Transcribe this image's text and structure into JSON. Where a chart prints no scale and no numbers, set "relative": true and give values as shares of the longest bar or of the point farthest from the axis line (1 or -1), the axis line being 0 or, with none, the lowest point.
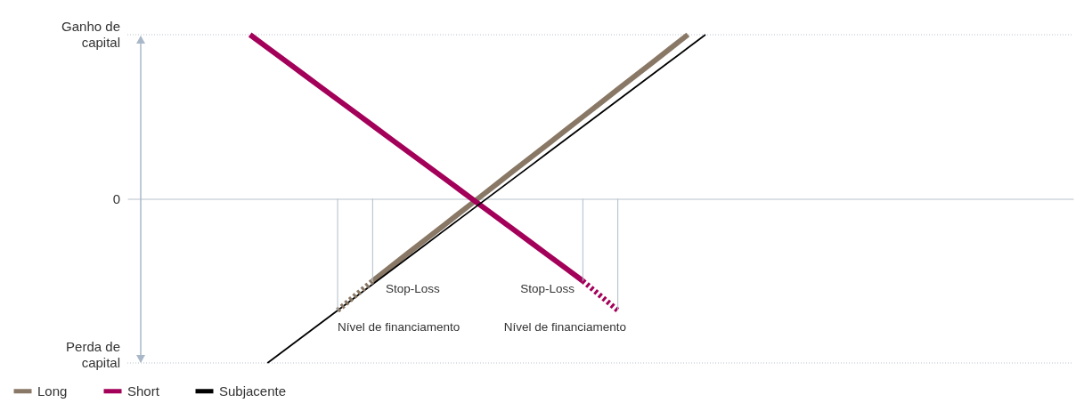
{
  "chart_data": {
    "type": "line",
    "relative": true,
    "legend": "bottom left",
    "categories": [
      null,
      null,
      null,
      null,
      null,
      null,
      null,
      null,
      null,
      null,
      null,
      null,
      null,
      null,
      null,
      null,
      null,
      null,
      null,
      null,
      null,
      null,
      null,
      null,
      null,
      null,
      null,
      null,
      null,
      null,
      null,
      null,
      null,
      null,
      null,
      null,
      null,
      null,
      null,
      null,
      null,
      null,
      null,
      null,
      null,
      null,
      null,
      null,
      null,
      null,
      null,
      null,
      null,
      null,
      null
    ],
    "series": [
      {
        "name": "Long",
        "color": "#8a7866",
        "values": [
          null,
          null,
          null,
          null,
          null,
          null,
          null,
          null,
          null,
          null,
          null,
          null,
          null,
          null,
          -0.5,
          -0.417,
          -0.333,
          -0.25,
          -0.167,
          -0.083,
          0,
          0.083,
          0.167,
          0.25,
          0.333,
          0.417,
          0.5,
          0.583,
          0.667,
          0.75,
          0.833,
          0.917,
          1,
          null,
          null,
          null,
          null,
          null,
          null,
          null,
          null,
          null,
          null,
          null,
          null,
          null,
          null,
          null,
          null,
          null,
          null,
          null,
          null,
          null,
          null
        ]
      },
      {
        "name": "Short",
        "color": "#a3005a",
        "values": [
          null,
          null,
          null,
          null,
          null,
          null,
          null,
          1,
          0.921,
          0.842,
          0.763,
          0.684,
          0.605,
          0.526,
          0.447,
          0.368,
          0.289,
          0.211,
          0.132,
          0.053,
          -0.026,
          -0.105,
          -0.184,
          -0.263,
          -0.342,
          -0.421,
          -0.5,
          null,
          null,
          null,
          null,
          null,
          null,
          null,
          null,
          null,
          null,
          null,
          null,
          null,
          null,
          null,
          null,
          null,
          null,
          null,
          null,
          null,
          null,
          null,
          null,
          null,
          null,
          null,
          null
        ]
      },
      {
        "name": "Subjacente",
        "color": "#000000",
        "values": [
          null,
          null,
          null,
          null,
          null,
          null,
          null,
          null,
          -1,
          -0.92,
          -0.84,
          -0.76,
          -0.68,
          -0.6,
          -0.52,
          -0.44,
          -0.36,
          -0.28,
          -0.2,
          -0.12,
          -0.04,
          0.04,
          0.12,
          0.2,
          0.28,
          0.36,
          0.44,
          0.52,
          0.6,
          0.68,
          0.76,
          0.84,
          0.92,
          1,
          null,
          null,
          null,
          null,
          null,
          null,
          null,
          null,
          null,
          null,
          null,
          null,
          null,
          null,
          null,
          null,
          null,
          null,
          null,
          null,
          null
        ]
      },
      {
        "color": "#8a7866",
        "line_style": "dashed",
        "values": [
          null,
          null,
          null,
          null,
          null,
          null,
          null,
          null,
          null,
          null,
          null,
          null,
          -0.68,
          -0.59,
          -0.5,
          null,
          null,
          null,
          null,
          null,
          null,
          null,
          null,
          null,
          null,
          null,
          null,
          null,
          null,
          null,
          null,
          null,
          null,
          null,
          null,
          null,
          null,
          null,
          null,
          null,
          null,
          null,
          null,
          null,
          null,
          null,
          null,
          null,
          null,
          null,
          null,
          null,
          null,
          null,
          null
        ]
      },
      {
        "color": "#a3005a",
        "line_style": "dashed",
        "values": [
          null,
          null,
          null,
          null,
          null,
          null,
          null,
          null,
          null,
          null,
          null,
          null,
          null,
          null,
          null,
          null,
          null,
          null,
          null,
          null,
          null,
          null,
          null,
          null,
          null,
          null,
          -0.5,
          -0.59,
          -0.68,
          null,
          null,
          null,
          null,
          null,
          null,
          null,
          null,
          null,
          null,
          null,
          null,
          null,
          null,
          null,
          null,
          null,
          null,
          null,
          null,
          null,
          null,
          null,
          null,
          null,
          null
        ]
      }
    ],
    "annotations": [
      "Ganho de capital",
      "0",
      "Perda de capital",
      "Stop-Loss",
      "Nível de financiamento",
      "Stop-Loss",
      "Nível de financiamento"
    ]
  }
}
